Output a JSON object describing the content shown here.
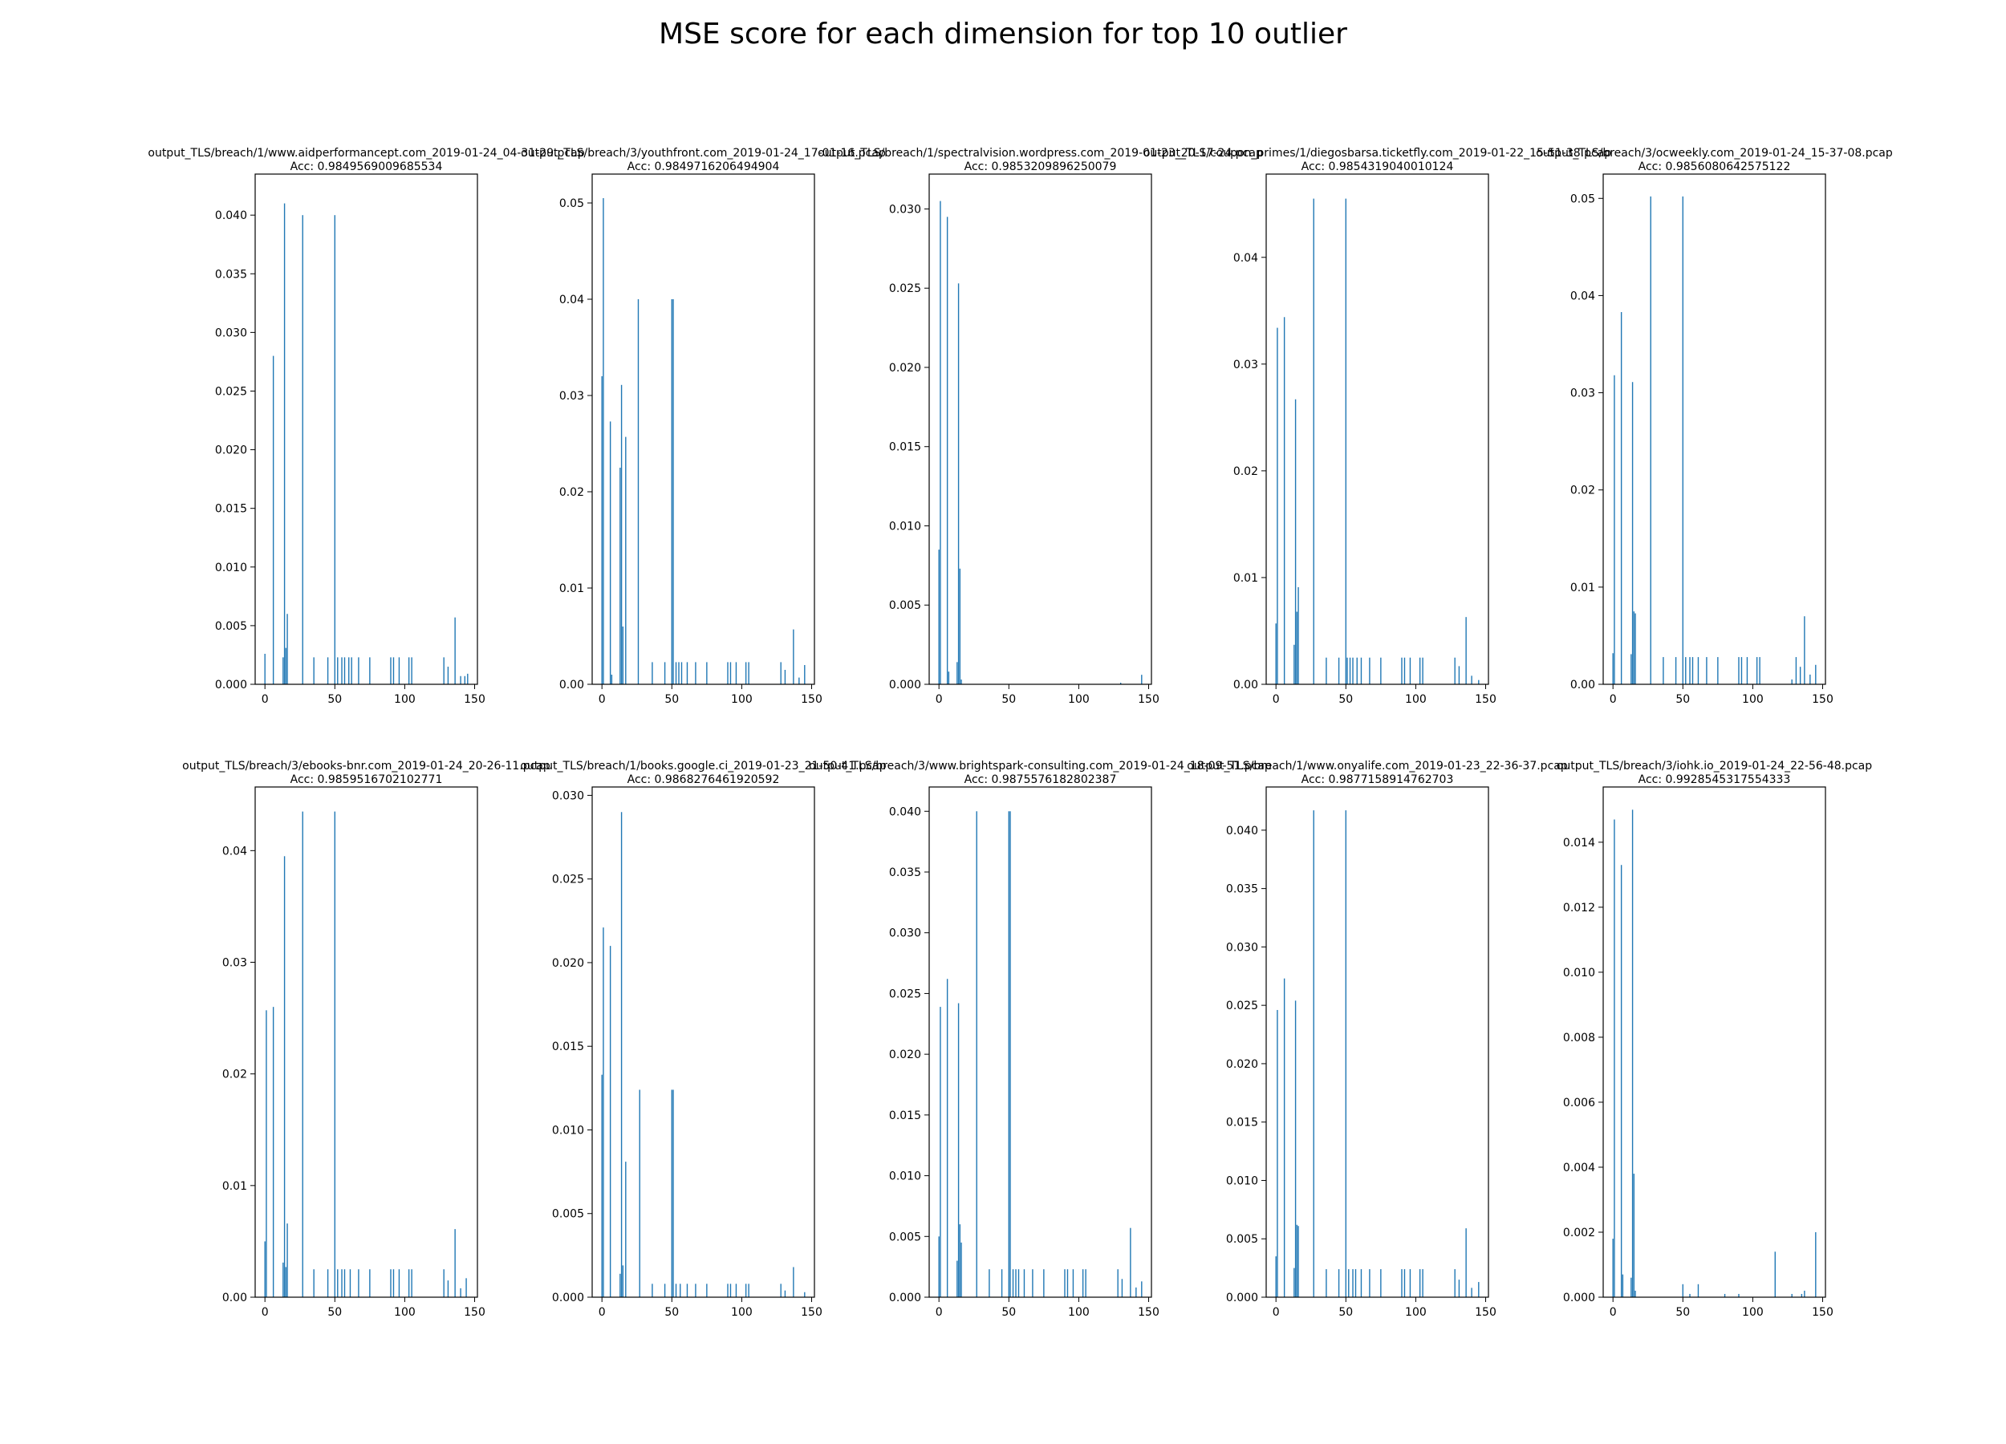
{
  "title": "MSE score for each dimension for top 10 outlier",
  "colors": {
    "bar": "#1f77b4",
    "axes": "#000000",
    "background": "#ffffff"
  },
  "chart_data": [
    {
      "type": "bar",
      "title": "output_TLS/breach/1/www.aidperformancept.com_2019-01-24_04-31-29.pcap",
      "subtitle": "Acc: 0.9849569009685534",
      "xlim": [
        -7,
        152
      ],
      "ylim": [
        0,
        0.0435
      ],
      "xticks": [
        0,
        50,
        100,
        150
      ],
      "yticks": [
        0.0,
        0.005,
        0.01,
        0.015,
        0.02,
        0.025,
        0.03,
        0.035,
        0.04
      ],
      "ytick_decimals": 3,
      "bars": [
        [
          0,
          0.0026
        ],
        [
          6,
          0.028
        ],
        [
          13,
          0.0023
        ],
        [
          14,
          0.041
        ],
        [
          15,
          0.0031
        ],
        [
          16,
          0.006
        ],
        [
          27,
          0.04
        ],
        [
          35,
          0.0023
        ],
        [
          45,
          0.0023
        ],
        [
          50,
          0.04
        ],
        [
          52,
          0.0023
        ],
        [
          55,
          0.0023
        ],
        [
          57,
          0.0023
        ],
        [
          60,
          0.0023
        ],
        [
          62,
          0.0023
        ],
        [
          67,
          0.0023
        ],
        [
          75,
          0.0023
        ],
        [
          90,
          0.0023
        ],
        [
          92,
          0.0023
        ],
        [
          96,
          0.0023
        ],
        [
          103,
          0.0023
        ],
        [
          105,
          0.0023
        ],
        [
          128,
          0.0023
        ],
        [
          131,
          0.0015
        ],
        [
          136,
          0.0057
        ],
        [
          140,
          0.0007
        ],
        [
          143,
          0.0007
        ],
        [
          145,
          0.0009
        ]
      ]
    },
    {
      "type": "bar",
      "title": "output_TLS/breach/3/youthfront.com_2019-01-24_17-01-16.pcap",
      "subtitle": "Acc: 0.9849716206494904",
      "xlim": [
        -7,
        152
      ],
      "ylim": [
        0,
        0.053
      ],
      "xticks": [
        0,
        50,
        100,
        150
      ],
      "yticks": [
        0.0,
        0.01,
        0.02,
        0.03,
        0.04,
        0.05
      ],
      "ytick_decimals": 2,
      "bars": [
        [
          0,
          0.032
        ],
        [
          1,
          0.0505
        ],
        [
          6,
          0.0273
        ],
        [
          7,
          0.001
        ],
        [
          13,
          0.0225
        ],
        [
          14,
          0.0311
        ],
        [
          15,
          0.006
        ],
        [
          17,
          0.0257
        ],
        [
          26,
          0.04
        ],
        [
          36,
          0.0023
        ],
        [
          45,
          0.0023
        ],
        [
          50,
          0.04
        ],
        [
          51,
          0.04
        ],
        [
          53,
          0.0023
        ],
        [
          55,
          0.0023
        ],
        [
          57,
          0.0023
        ],
        [
          61,
          0.0023
        ],
        [
          67,
          0.0023
        ],
        [
          75,
          0.0023
        ],
        [
          90,
          0.0023
        ],
        [
          92,
          0.0023
        ],
        [
          96,
          0.0023
        ],
        [
          103,
          0.0023
        ],
        [
          105,
          0.0023
        ],
        [
          128,
          0.0023
        ],
        [
          131,
          0.0015
        ],
        [
          137,
          0.0057
        ],
        [
          141,
          0.0007
        ],
        [
          145,
          0.002
        ]
      ]
    },
    {
      "type": "bar",
      "title": "output_TLS/breach/1/spectralvision.wordpress.com_2019-01-23_20-17-24.pcap",
      "subtitle": "Acc: 0.9853209896250079",
      "xlim": [
        -7,
        152
      ],
      "ylim": [
        0,
        0.0322
      ],
      "xticks": [
        0,
        50,
        100,
        150
      ],
      "yticks": [
        0.0,
        0.005,
        0.01,
        0.015,
        0.02,
        0.025,
        0.03
      ],
      "ytick_decimals": 3,
      "bars": [
        [
          0,
          0.0085
        ],
        [
          1,
          0.0305
        ],
        [
          6,
          0.0295
        ],
        [
          7,
          0.0008
        ],
        [
          13,
          0.0014
        ],
        [
          14,
          0.0253
        ],
        [
          15,
          0.0073
        ],
        [
          16,
          0.0003
        ],
        [
          130,
          0.0001
        ],
        [
          145,
          0.0006
        ]
      ]
    },
    {
      "type": "bar",
      "title": "output_TLS/coupon_primes/1/diegosbarsa.ticketfly.com_2019-01-22_15-51-38.pcap",
      "subtitle": "Acc: 0.9854319040010124",
      "xlim": [
        -7,
        152
      ],
      "ylim": [
        0,
        0.0478
      ],
      "xticks": [
        0,
        50,
        100,
        150
      ],
      "yticks": [
        0.0,
        0.01,
        0.02,
        0.03,
        0.04
      ],
      "ytick_decimals": 2,
      "bars": [
        [
          0,
          0.0057
        ],
        [
          1,
          0.0334
        ],
        [
          6,
          0.0344
        ],
        [
          13,
          0.0037
        ],
        [
          14,
          0.0267
        ],
        [
          15,
          0.0068
        ],
        [
          16,
          0.0091
        ],
        [
          27,
          0.0455
        ],
        [
          36,
          0.0025
        ],
        [
          45,
          0.0025
        ],
        [
          50,
          0.0455
        ],
        [
          51,
          0.0025
        ],
        [
          53,
          0.0025
        ],
        [
          55,
          0.0025
        ],
        [
          58,
          0.0025
        ],
        [
          61,
          0.0025
        ],
        [
          67,
          0.0025
        ],
        [
          75,
          0.0025
        ],
        [
          90,
          0.0025
        ],
        [
          92,
          0.0025
        ],
        [
          96,
          0.0025
        ],
        [
          103,
          0.0025
        ],
        [
          105,
          0.0025
        ],
        [
          128,
          0.0025
        ],
        [
          131,
          0.0017
        ],
        [
          136,
          0.0063
        ],
        [
          140,
          0.0008
        ],
        [
          145,
          0.0004
        ]
      ]
    },
    {
      "type": "bar",
      "title": "output_TLS/breach/3/ocweekly.com_2019-01-24_15-37-08.pcap",
      "subtitle": "Acc: 0.9856080642575122",
      "xlim": [
        -7,
        152
      ],
      "ylim": [
        0,
        0.0525
      ],
      "xticks": [
        0,
        50,
        100,
        150
      ],
      "yticks": [
        0.0,
        0.01,
        0.02,
        0.03,
        0.04,
        0.05
      ],
      "ytick_decimals": 2,
      "bars": [
        [
          0,
          0.0032
        ],
        [
          1,
          0.0318
        ],
        [
          6,
          0.0383
        ],
        [
          13,
          0.0031
        ],
        [
          14,
          0.0311
        ],
        [
          15,
          0.0075
        ],
        [
          16,
          0.0073
        ],
        [
          27,
          0.0502
        ],
        [
          36,
          0.0028
        ],
        [
          45,
          0.0028
        ],
        [
          50,
          0.0502
        ],
        [
          52,
          0.0028
        ],
        [
          55,
          0.0028
        ],
        [
          57,
          0.0028
        ],
        [
          61,
          0.0028
        ],
        [
          67,
          0.0028
        ],
        [
          75,
          0.0028
        ],
        [
          90,
          0.0028
        ],
        [
          92,
          0.0028
        ],
        [
          96,
          0.0028
        ],
        [
          103,
          0.0028
        ],
        [
          105,
          0.0028
        ],
        [
          128,
          0.0005
        ],
        [
          131,
          0.0028
        ],
        [
          134,
          0.0018
        ],
        [
          137,
          0.007
        ],
        [
          141,
          0.001
        ],
        [
          145,
          0.002
        ]
      ]
    },
    {
      "type": "bar",
      "title": "output_TLS/breach/3/ebooks-bnr.com_2019-01-24_20-26-11.pcap",
      "subtitle": "Acc: 0.9859516702102771",
      "xlim": [
        -7,
        152
      ],
      "ylim": [
        0,
        0.0457
      ],
      "xticks": [
        0,
        50,
        100,
        150
      ],
      "yticks": [
        0.0,
        0.01,
        0.02,
        0.03,
        0.04
      ],
      "ytick_decimals": 2,
      "bars": [
        [
          0,
          0.005
        ],
        [
          1,
          0.0257
        ],
        [
          6,
          0.026
        ],
        [
          13,
          0.0031
        ],
        [
          14,
          0.0395
        ],
        [
          15,
          0.0027
        ],
        [
          16,
          0.0066
        ],
        [
          27,
          0.0435
        ],
        [
          35,
          0.0025
        ],
        [
          45,
          0.0025
        ],
        [
          50,
          0.0435
        ],
        [
          52,
          0.0025
        ],
        [
          55,
          0.0025
        ],
        [
          57,
          0.0025
        ],
        [
          61,
          0.0025
        ],
        [
          67,
          0.0025
        ],
        [
          75,
          0.0025
        ],
        [
          90,
          0.0025
        ],
        [
          92,
          0.0025
        ],
        [
          96,
          0.0025
        ],
        [
          103,
          0.0025
        ],
        [
          105,
          0.0025
        ],
        [
          128,
          0.0025
        ],
        [
          131,
          0.0015
        ],
        [
          136,
          0.0061
        ],
        [
          140,
          0.0008
        ],
        [
          144,
          0.0017
        ]
      ]
    },
    {
      "type": "bar",
      "title": "output_TLS/breach/1/books.google.ci_2019-01-23_21-50-41.pcap",
      "subtitle": "Acc: 0.9868276461920592",
      "xlim": [
        -7,
        152
      ],
      "ylim": [
        0,
        0.0305
      ],
      "xticks": [
        0,
        50,
        100,
        150
      ],
      "yticks": [
        0.0,
        0.005,
        0.01,
        0.015,
        0.02,
        0.025,
        0.03
      ],
      "ytick_decimals": 3,
      "bars": [
        [
          0,
          0.0133
        ],
        [
          1,
          0.0221
        ],
        [
          6,
          0.021
        ],
        [
          13,
          0.0014
        ],
        [
          14,
          0.029
        ],
        [
          15,
          0.0019
        ],
        [
          17,
          0.0081
        ],
        [
          27,
          0.0124
        ],
        [
          36,
          0.0008
        ],
        [
          45,
          0.0008
        ],
        [
          50,
          0.0124
        ],
        [
          51,
          0.0124
        ],
        [
          53,
          0.0008
        ],
        [
          56,
          0.0008
        ],
        [
          61,
          0.0008
        ],
        [
          67,
          0.0008
        ],
        [
          75,
          0.0008
        ],
        [
          90,
          0.0008
        ],
        [
          92,
          0.0008
        ],
        [
          96,
          0.0008
        ],
        [
          103,
          0.0008
        ],
        [
          105,
          0.0008
        ],
        [
          128,
          0.0008
        ],
        [
          131,
          0.0004
        ],
        [
          137,
          0.0018
        ],
        [
          145,
          0.0003
        ]
      ]
    },
    {
      "type": "bar",
      "title": "output_TLS/breach/3/www.brightspark-consulting.com_2019-01-24_18-09-51.pcap",
      "subtitle": "Acc: 0.9875576182802387",
      "xlim": [
        -7,
        152
      ],
      "ylim": [
        0,
        0.042
      ],
      "xticks": [
        0,
        50,
        100,
        150
      ],
      "yticks": [
        0.0,
        0.005,
        0.01,
        0.015,
        0.02,
        0.025,
        0.03,
        0.035,
        0.04
      ],
      "ytick_decimals": 3,
      "bars": [
        [
          0,
          0.005
        ],
        [
          1,
          0.0239
        ],
        [
          6,
          0.0262
        ],
        [
          13,
          0.003
        ],
        [
          14,
          0.0242
        ],
        [
          15,
          0.006
        ],
        [
          16,
          0.0045
        ],
        [
          27,
          0.04
        ],
        [
          36,
          0.0023
        ],
        [
          45,
          0.0023
        ],
        [
          50,
          0.04
        ],
        [
          51,
          0.04
        ],
        [
          53,
          0.0023
        ],
        [
          55,
          0.0023
        ],
        [
          57,
          0.0023
        ],
        [
          61,
          0.0023
        ],
        [
          67,
          0.0023
        ],
        [
          75,
          0.0023
        ],
        [
          90,
          0.0023
        ],
        [
          92,
          0.0023
        ],
        [
          96,
          0.0023
        ],
        [
          103,
          0.0023
        ],
        [
          105,
          0.0023
        ],
        [
          128,
          0.0023
        ],
        [
          131,
          0.0015
        ],
        [
          137,
          0.0057
        ],
        [
          141,
          0.0008
        ],
        [
          145,
          0.0013
        ]
      ]
    },
    {
      "type": "bar",
      "title": "output_TLS/breach/1/www.onyalife.com_2019-01-23_22-36-37.pcap",
      "subtitle": "Acc: 0.9877158914762703",
      "xlim": [
        -7,
        152
      ],
      "ylim": [
        0,
        0.0437
      ],
      "xticks": [
        0,
        50,
        100,
        150
      ],
      "yticks": [
        0.0,
        0.005,
        0.01,
        0.015,
        0.02,
        0.025,
        0.03,
        0.035,
        0.04
      ],
      "ytick_decimals": 3,
      "bars": [
        [
          0,
          0.0035
        ],
        [
          1,
          0.0246
        ],
        [
          6,
          0.0273
        ],
        [
          13,
          0.0025
        ],
        [
          14,
          0.0254
        ],
        [
          15,
          0.0062
        ],
        [
          16,
          0.0061
        ],
        [
          27,
          0.0417
        ],
        [
          36,
          0.0024
        ],
        [
          45,
          0.0024
        ],
        [
          50,
          0.0417
        ],
        [
          52,
          0.0024
        ],
        [
          55,
          0.0024
        ],
        [
          57,
          0.0024
        ],
        [
          61,
          0.0024
        ],
        [
          67,
          0.0024
        ],
        [
          75,
          0.0024
        ],
        [
          90,
          0.0024
        ],
        [
          92,
          0.0024
        ],
        [
          96,
          0.0024
        ],
        [
          103,
          0.0024
        ],
        [
          105,
          0.0024
        ],
        [
          128,
          0.0024
        ],
        [
          131,
          0.0015
        ],
        [
          136,
          0.0059
        ],
        [
          140,
          0.0008
        ],
        [
          145,
          0.0013
        ]
      ]
    },
    {
      "type": "bar",
      "title": "output_TLS/breach/3/iohk.io_2019-01-24_22-56-48.pcap",
      "subtitle": "Acc: 0.9928545317554333",
      "xlim": [
        -7,
        152
      ],
      "ylim": [
        0,
        0.0157
      ],
      "xticks": [
        0,
        50,
        100,
        150
      ],
      "yticks": [
        0.0,
        0.002,
        0.004,
        0.006,
        0.008,
        0.01,
        0.012,
        0.014
      ],
      "ytick_decimals": 3,
      "bars": [
        [
          0,
          0.0018
        ],
        [
          1,
          0.0147
        ],
        [
          6,
          0.0133
        ],
        [
          7,
          0.0007
        ],
        [
          13,
          0.0006
        ],
        [
          14,
          0.015
        ],
        [
          15,
          0.0038
        ],
        [
          16,
          0.0002
        ],
        [
          50,
          0.0004
        ],
        [
          55,
          0.0001
        ],
        [
          61,
          0.0004
        ],
        [
          80,
          0.0001
        ],
        [
          90,
          0.0001
        ],
        [
          116,
          0.0014
        ],
        [
          128,
          0.0001
        ],
        [
          135,
          0.0001
        ],
        [
          137,
          0.0002
        ],
        [
          145,
          0.002
        ]
      ]
    }
  ]
}
